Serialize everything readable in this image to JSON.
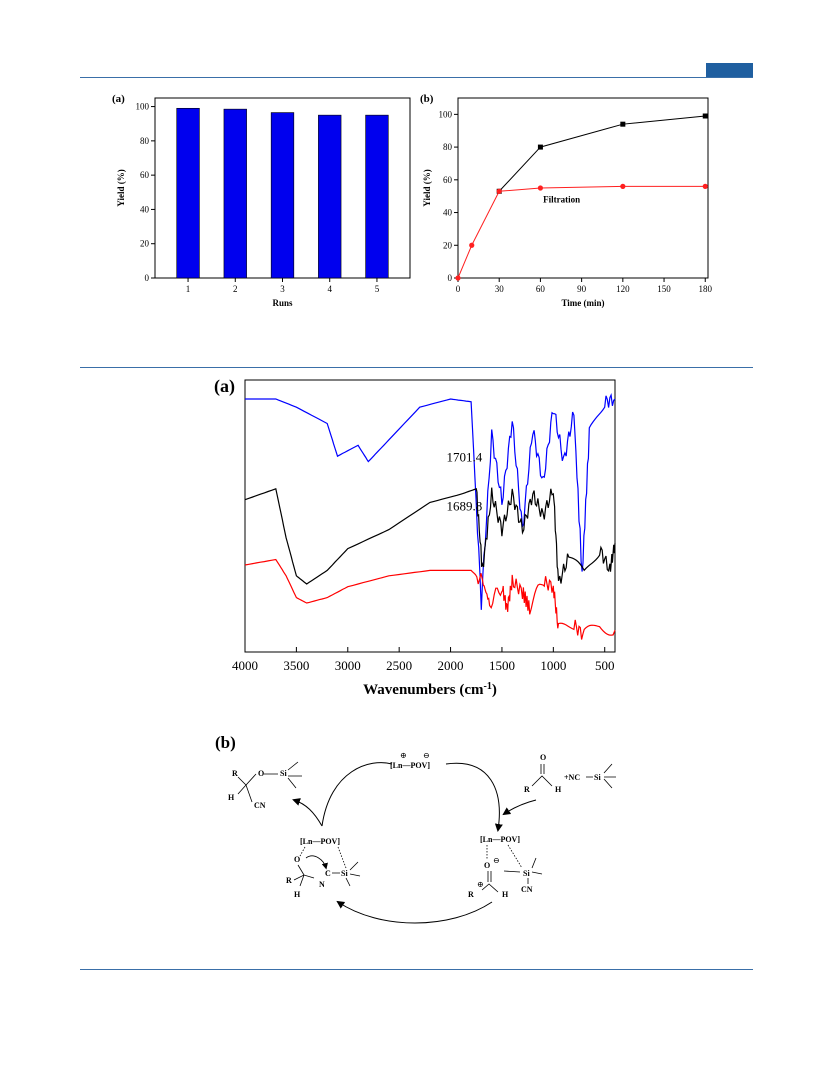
{
  "header": {
    "accent_color": "#1f5fa0",
    "rule_color": "#3a6fa8"
  },
  "figure_top": {
    "panel_a": {
      "label": "(a)",
      "chart_data": {
        "type": "bar",
        "categories": [
          "1",
          "2",
          "3",
          "4",
          "5"
        ],
        "values": [
          99,
          98.5,
          96.5,
          95,
          95
        ],
        "xlabel": "Runs",
        "ylabel": "Yield (%)",
        "ylim": [
          0,
          105
        ],
        "yticks": [
          0,
          20,
          40,
          60,
          80,
          100
        ],
        "bar_color": "#0000ee",
        "grid": false
      }
    },
    "panel_b": {
      "label": "(b)",
      "chart_data": {
        "type": "line",
        "xlabel": "Time (min)",
        "ylabel": "Yield (%)",
        "xlim": [
          0,
          182
        ],
        "ylim": [
          0,
          110
        ],
        "xticks": [
          0,
          30,
          60,
          90,
          120,
          150,
          180
        ],
        "yticks": [
          0,
          20,
          40,
          60,
          80,
          100
        ],
        "annotation": "Filtration",
        "grid": false,
        "series": [
          {
            "color": "#000000",
            "marker": "square",
            "x": [
              30,
              60,
              120,
              180
            ],
            "y": [
              53,
              80,
              94,
              99
            ]
          },
          {
            "color": "#ff2020",
            "marker": "circle",
            "x": [
              0,
              10,
              30,
              60,
              120,
              180
            ],
            "y": [
              0,
              20,
              53,
              55,
              56,
              56
            ]
          }
        ]
      }
    }
  },
  "figure_ir": {
    "label": "(a)",
    "chart_data": {
      "type": "line",
      "xlabel": "Wavenumbers (cm",
      "xlabel_sup": "-1",
      "xlabel_close": ")",
      "xlim": [
        4000,
        400
      ],
      "xticks": [
        4000,
        3500,
        3000,
        2500,
        2000,
        1500,
        1000,
        500
      ],
      "y_axis_labels": false,
      "annotations": [
        "1701.4",
        "1689.8"
      ],
      "series": [
        {
          "color": "#0000ff",
          "description_points": [
            [
              4000,
              0.93
            ],
            [
              3700,
              0.93
            ],
            [
              3500,
              0.9
            ],
            [
              3200,
              0.84
            ],
            [
              3100,
              0.72
            ],
            [
              2900,
              0.76
            ],
            [
              2800,
              0.7
            ],
            [
              2600,
              0.78
            ],
            [
              2300,
              0.9
            ],
            [
              2000,
              0.93
            ],
            [
              1800,
              0.92
            ],
            [
              1701,
              0.18
            ],
            [
              1600,
              0.8
            ],
            [
              1500,
              0.55
            ],
            [
              1400,
              0.85
            ],
            [
              1300,
              0.45
            ],
            [
              1200,
              0.82
            ],
            [
              1100,
              0.62
            ],
            [
              1000,
              0.9
            ],
            [
              900,
              0.7
            ],
            [
              800,
              0.88
            ],
            [
              720,
              0.28
            ],
            [
              650,
              0.8
            ],
            [
              500,
              0.92
            ],
            [
              400,
              0.93
            ]
          ]
        },
        {
          "color": "#000000",
          "description_points": [
            [
              4000,
              0.56
            ],
            [
              3700,
              0.6
            ],
            [
              3600,
              0.42
            ],
            [
              3500,
              0.28
            ],
            [
              3400,
              0.25
            ],
            [
              3200,
              0.3
            ],
            [
              3000,
              0.38
            ],
            [
              2600,
              0.45
            ],
            [
              2200,
              0.55
            ],
            [
              1900,
              0.58
            ],
            [
              1750,
              0.6
            ],
            [
              1690,
              0.3
            ],
            [
              1600,
              0.58
            ],
            [
              1500,
              0.45
            ],
            [
              1400,
              0.58
            ],
            [
              1300,
              0.45
            ],
            [
              1200,
              0.58
            ],
            [
              1100,
              0.5
            ],
            [
              1000,
              0.6
            ],
            [
              950,
              0.25
            ],
            [
              850,
              0.35
            ],
            [
              700,
              0.28
            ],
            [
              550,
              0.38
            ],
            [
              450,
              0.3
            ],
            [
              400,
              0.4
            ]
          ]
        },
        {
          "color": "#ff0000",
          "description_points": [
            [
              4000,
              0.32
            ],
            [
              3700,
              0.34
            ],
            [
              3600,
              0.28
            ],
            [
              3500,
              0.2
            ],
            [
              3400,
              0.18
            ],
            [
              3200,
              0.2
            ],
            [
              3000,
              0.24
            ],
            [
              2600,
              0.28
            ],
            [
              2200,
              0.3
            ],
            [
              1800,
              0.3
            ],
            [
              1690,
              0.26
            ],
            [
              1620,
              0.18
            ],
            [
              1500,
              0.24
            ],
            [
              1450,
              0.16
            ],
            [
              1400,
              0.26
            ],
            [
              1300,
              0.22
            ],
            [
              1230,
              0.16
            ],
            [
              1100,
              0.26
            ],
            [
              1000,
              0.24
            ],
            [
              950,
              0.08
            ],
            [
              800,
              0.1
            ],
            [
              700,
              0.06
            ],
            [
              550,
              0.1
            ],
            [
              400,
              0.08
            ]
          ]
        }
      ]
    }
  },
  "figure_scheme": {
    "label": "(b)",
    "catalyst": "[Ln—POV]",
    "charge_plus": "⊕",
    "charge_minus": "⊖",
    "reagent_aldehyde": "R",
    "reagent_h": "H",
    "reagent_o": "O",
    "reagent_plus_nc": "+NC",
    "si": "Si",
    "product_r": "R",
    "product_h": "H",
    "product_o": "O",
    "product_cn": "CN",
    "int_left_catalyst": "[Ln—POV]",
    "int_left_o": "O",
    "int_left_c": "C",
    "int_left_n": "N",
    "int_left_r": "R",
    "int_left_h": "H",
    "int_left_si": "Si",
    "int_right_catalyst": "[Ln—POV]",
    "int_right_o": "O",
    "int_right_si": "Si",
    "int_right_cn": "CN",
    "int_right_r": "R",
    "int_right_h": "H"
  }
}
